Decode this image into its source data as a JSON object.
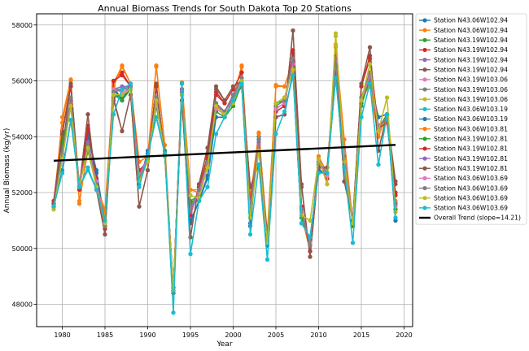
{
  "chart_data": {
    "type": "line",
    "title": "Annual Biomass Trends for South Dakota Top 20 Stations",
    "xlabel": "Year",
    "ylabel": "Annual Biomass (kg/yr)",
    "xlim": [
      1977.0,
      2021.0
    ],
    "ylim": [
      47200,
      58400
    ],
    "xticks": [
      1980,
      1985,
      1990,
      1995,
      2000,
      2005,
      2010,
      2015,
      2020
    ],
    "yticks": [
      48000,
      50000,
      52000,
      54000,
      56000,
      58000
    ],
    "grid": true,
    "legend_position": "outside-right",
    "x": [
      1979,
      1980,
      1981,
      1982,
      1983,
      1984,
      1985,
      1986,
      1987,
      1988,
      1989,
      1990,
      1991,
      1992,
      1993,
      1994,
      1995,
      1996,
      1997,
      1998,
      1999,
      2000,
      2001,
      2002,
      2003,
      2004,
      2005,
      2006,
      2007,
      2008,
      2009,
      2010,
      2011,
      2012,
      2013,
      2014,
      2015,
      2016,
      2017,
      2018,
      2019
    ],
    "series": [
      {
        "name": "Station N43.06W102.94",
        "color": "#1f77b4",
        "values": [
          51600,
          52700,
          54600,
          52300,
          54100,
          52800,
          50900,
          55800,
          55300,
          55900,
          52300,
          53500,
          54700,
          53400,
          48500,
          55900,
          50900,
          51700,
          52500,
          54700,
          54700,
          55300,
          55900,
          50800,
          54000,
          50100,
          54700,
          54800,
          56300,
          50900,
          50400,
          52800,
          52600,
          56200,
          52900,
          50900,
          55200,
          56000,
          54700,
          54800,
          51000
        ]
      },
      {
        "name": "Station N43.06W102.94",
        "color": "#ff7f0e",
        "values": [
          51500,
          54700,
          56050,
          51600,
          53600,
          52200,
          51400,
          55900,
          56550,
          55900,
          53100,
          53300,
          56550,
          53700,
          48400,
          55950,
          52100,
          52000,
          53400,
          55200,
          54700,
          55400,
          56550,
          51800,
          54150,
          50400,
          55850,
          55800,
          56700,
          51200,
          49900,
          53300,
          52700,
          57200,
          53900,
          50900,
          55400,
          55800,
          54000,
          54800,
          51700
        ]
      },
      {
        "name": "Station N43.19W102.94",
        "color": "#2ca02c",
        "values": [
          51500,
          53900,
          55000,
          52400,
          53500,
          52300,
          51000,
          55500,
          55400,
          55700,
          52600,
          53200,
          55100,
          53500,
          48500,
          55500,
          51600,
          51900,
          52900,
          54900,
          54700,
          55100,
          55900,
          51300,
          53700,
          50200,
          55100,
          55300,
          56500,
          51100,
          50200,
          53000,
          52600,
          56600,
          53400,
          50800,
          55100,
          56100,
          54300,
          54800,
          51400
        ]
      },
      {
        "name": "Station N43.19W102.94",
        "color": "#d62728",
        "values": [
          51700,
          54200,
          55800,
          52100,
          54400,
          52500,
          50700,
          56000,
          56300,
          55800,
          52800,
          53100,
          55800,
          53300,
          48600,
          55700,
          51200,
          52200,
          53200,
          55600,
          55200,
          55700,
          56300,
          51600,
          53600,
          50500,
          54900,
          55100,
          57100,
          51500,
          49900,
          53200,
          52500,
          56900,
          53300,
          51000,
          55800,
          56900,
          54300,
          54500,
          52000
        ]
      },
      {
        "name": "Station N43.19W102.94",
        "color": "#9467bd",
        "values": [
          51600,
          53500,
          55300,
          52300,
          53800,
          52400,
          50800,
          55700,
          55800,
          55800,
          52600,
          53300,
          55300,
          53400,
          48500,
          55700,
          51300,
          52000,
          53000,
          55100,
          54900,
          55400,
          56000,
          51500,
          53800,
          50300,
          55000,
          55200,
          56700,
          51300,
          50200,
          53100,
          52600,
          56700,
          53400,
          50900,
          55400,
          56300,
          54400,
          54700,
          51600
        ]
      },
      {
        "name": "Station N43.19W102.94",
        "color": "#8c564b",
        "values": [
          51600,
          53500,
          55900,
          52200,
          54800,
          52100,
          50500,
          55400,
          54200,
          55500,
          51500,
          52800,
          55900,
          53300,
          48400,
          55300,
          50400,
          52300,
          53600,
          55800,
          55300,
          55800,
          56000,
          52200,
          53000,
          50300,
          54700,
          54800,
          57800,
          52300,
          49700,
          52900,
          52900,
          56600,
          52400,
          51000,
          55900,
          57200,
          53500,
          54800,
          52400
        ]
      },
      {
        "name": "Station N43.19W103.06",
        "color": "#e377c2",
        "values": [
          51500,
          53300,
          55200,
          52300,
          53800,
          52400,
          50900,
          55700,
          55600,
          55700,
          52700,
          53200,
          55200,
          53400,
          48500,
          55600,
          51400,
          52000,
          53000,
          55000,
          54800,
          55300,
          56000,
          51500,
          53700,
          50300,
          55000,
          55200,
          56600,
          51300,
          50200,
          53100,
          52600,
          56700,
          53400,
          50900,
          55300,
          56200,
          54300,
          54700,
          51500
        ]
      },
      {
        "name": "Station N43.19W103.06",
        "color": "#7f7f7f",
        "values": [
          51500,
          53400,
          55400,
          52200,
          53700,
          52300,
          50800,
          55600,
          55700,
          55700,
          52500,
          53200,
          55400,
          53400,
          48500,
          55600,
          51400,
          52100,
          53100,
          55200,
          54900,
          55500,
          56100,
          51400,
          53900,
          50300,
          55100,
          55300,
          56800,
          51400,
          50100,
          53100,
          52700,
          56800,
          53300,
          50900,
          55400,
          56300,
          54300,
          54700,
          51600
        ]
      },
      {
        "name": "Station N43.19W103.06",
        "color": "#bcbd22",
        "values": [
          51400,
          53200,
          55100,
          52200,
          53600,
          52200,
          50900,
          55500,
          55500,
          55700,
          52400,
          53100,
          55300,
          53300,
          48500,
          55500,
          51900,
          51800,
          52900,
          55100,
          54800,
          55200,
          56000,
          51100,
          53500,
          50200,
          55200,
          55400,
          56400,
          51200,
          51000,
          53200,
          52300,
          57600,
          53100,
          50900,
          55300,
          56600,
          54200,
          55400,
          51300
        ]
      },
      {
        "name": "Station N43.06W103.19",
        "color": "#17becf",
        "values": [
          51500,
          52700,
          54600,
          52200,
          52800,
          52100,
          51000,
          54800,
          55700,
          55900,
          52200,
          53300,
          54700,
          53400,
          47700,
          55900,
          49800,
          51700,
          52200,
          54100,
          54700,
          55300,
          55900,
          50500,
          53000,
          49600,
          54100,
          54900,
          56200,
          50900,
          50400,
          52700,
          52700,
          56100,
          52900,
          50200,
          54700,
          55900,
          53000,
          54800,
          51100
        ]
      },
      {
        "name": "Station N43.06W103.19",
        "color": "#1f77b4",
        "values": [
          51500,
          52800,
          54600,
          52300,
          54000,
          52700,
          50900,
          55700,
          55300,
          55900,
          52400,
          53400,
          54700,
          53400,
          48500,
          55900,
          51000,
          51700,
          52600,
          54700,
          54700,
          55300,
          55800,
          50900,
          53900,
          50100,
          54700,
          54800,
          56300,
          50900,
          50400,
          52800,
          52700,
          56200,
          52900,
          51000,
          55200,
          56000,
          54700,
          54800,
          51000
        ]
      },
      {
        "name": "Station N43.06W103.81",
        "color": "#ff7f0e",
        "values": [
          51500,
          54500,
          56000,
          51700,
          53500,
          52200,
          51300,
          55800,
          56500,
          55900,
          53100,
          53300,
          56500,
          53700,
          48400,
          55900,
          52100,
          52100,
          53300,
          55200,
          54700,
          55400,
          56500,
          51800,
          54100,
          50500,
          55800,
          55800,
          56700,
          51200,
          49900,
          53300,
          52700,
          57300,
          53900,
          50900,
          55400,
          55800,
          54000,
          54800,
          51700
        ]
      },
      {
        "name": "Station N43.19W102.81",
        "color": "#2ca02c",
        "values": [
          51500,
          53800,
          55100,
          52300,
          53500,
          52300,
          51000,
          55500,
          55300,
          55700,
          52500,
          53200,
          55100,
          53500,
          48500,
          55500,
          51700,
          51900,
          52900,
          54900,
          54700,
          55100,
          55900,
          51300,
          53700,
          50200,
          55200,
          55300,
          56500,
          51100,
          50300,
          53000,
          52600,
          56600,
          53400,
          50800,
          55100,
          56100,
          54300,
          54800,
          51400
        ]
      },
      {
        "name": "Station N43.19W102.81",
        "color": "#d62728",
        "values": [
          51700,
          54100,
          55800,
          52100,
          54300,
          52500,
          50700,
          56000,
          56200,
          55800,
          52800,
          53100,
          55800,
          53300,
          48600,
          55700,
          51200,
          52200,
          53300,
          55500,
          55200,
          55700,
          56300,
          51700,
          53700,
          50500,
          54900,
          55100,
          57000,
          51500,
          49900,
          53200,
          52500,
          56800,
          53300,
          51000,
          55800,
          56800,
          54300,
          54500,
          51900
        ]
      },
      {
        "name": "Station N43.19W102.81",
        "color": "#9467bd",
        "values": [
          51600,
          53400,
          55300,
          52200,
          53800,
          52400,
          50800,
          55700,
          55700,
          55800,
          52600,
          53300,
          55400,
          53400,
          48500,
          55700,
          51300,
          52000,
          53000,
          55100,
          54900,
          55400,
          56000,
          51500,
          53800,
          50300,
          55000,
          55200,
          56700,
          51300,
          50100,
          53100,
          52600,
          56700,
          53400,
          50900,
          55400,
          56300,
          54400,
          54700,
          51600
        ]
      },
      {
        "name": "Station N43.19W102.81",
        "color": "#8c564b",
        "values": [
          51600,
          54100,
          55900,
          52200,
          54800,
          52100,
          50500,
          55300,
          54200,
          55500,
          51500,
          52800,
          55900,
          53300,
          48400,
          55300,
          50400,
          52300,
          53600,
          55700,
          55300,
          55800,
          56000,
          52200,
          53000,
          50300,
          54700,
          54800,
          57800,
          52200,
          49700,
          52900,
          52900,
          56500,
          52400,
          51000,
          55900,
          57200,
          53500,
          54800,
          52300
        ]
      },
      {
        "name": "Station N43.06W103.69",
        "color": "#e377c2",
        "values": [
          51500,
          53300,
          55200,
          52300,
          53700,
          52400,
          50900,
          55700,
          55600,
          55700,
          52600,
          53200,
          55200,
          53400,
          48500,
          55600,
          51400,
          52000,
          53000,
          55000,
          54800,
          55300,
          56000,
          51500,
          53700,
          50300,
          55000,
          55200,
          56600,
          51300,
          50200,
          53100,
          52600,
          56700,
          53400,
          50900,
          55300,
          56200,
          54300,
          54700,
          51500
        ]
      },
      {
        "name": "Station N43.06W103.69",
        "color": "#7f7f7f",
        "values": [
          51500,
          53400,
          55400,
          52200,
          53700,
          52300,
          50800,
          55600,
          55700,
          55700,
          52500,
          53200,
          55400,
          53400,
          48500,
          55600,
          51400,
          52100,
          53100,
          55200,
          54900,
          55500,
          56100,
          51400,
          53900,
          50300,
          55100,
          55300,
          56800,
          51400,
          50100,
          53100,
          52700,
          56800,
          53300,
          50900,
          55400,
          56300,
          54300,
          54700,
          51600
        ]
      },
      {
        "name": "Station N43.06W103.69",
        "color": "#bcbd22",
        "values": [
          51400,
          53200,
          55100,
          52200,
          53600,
          52200,
          50900,
          55500,
          55500,
          55700,
          52400,
          53100,
          55300,
          53300,
          48500,
          55500,
          51900,
          51800,
          52900,
          55100,
          54800,
          55200,
          56000,
          51100,
          53500,
          50200,
          55200,
          55400,
          56400,
          51200,
          51000,
          53200,
          52300,
          57700,
          53100,
          50900,
          55300,
          56600,
          54200,
          55400,
          51300
        ]
      },
      {
        "name": "Station N43.06W103.69",
        "color": "#17becf",
        "values": [
          51500,
          52700,
          54600,
          52200,
          52900,
          52100,
          51000,
          54800,
          55700,
          55900,
          52200,
          53300,
          54700,
          53400,
          47700,
          55900,
          49800,
          51700,
          52200,
          54100,
          54700,
          55300,
          55900,
          50500,
          53000,
          49600,
          54100,
          54900,
          56200,
          50900,
          50400,
          52700,
          52700,
          56100,
          52900,
          50200,
          54700,
          55900,
          53000,
          54800,
          51100
        ]
      }
    ],
    "trend": {
      "name": "Overall Trend (slope=14.21)",
      "color": "#000000",
      "x": [
        1979,
        2019
      ],
      "values": [
        53140,
        53708
      ]
    }
  }
}
